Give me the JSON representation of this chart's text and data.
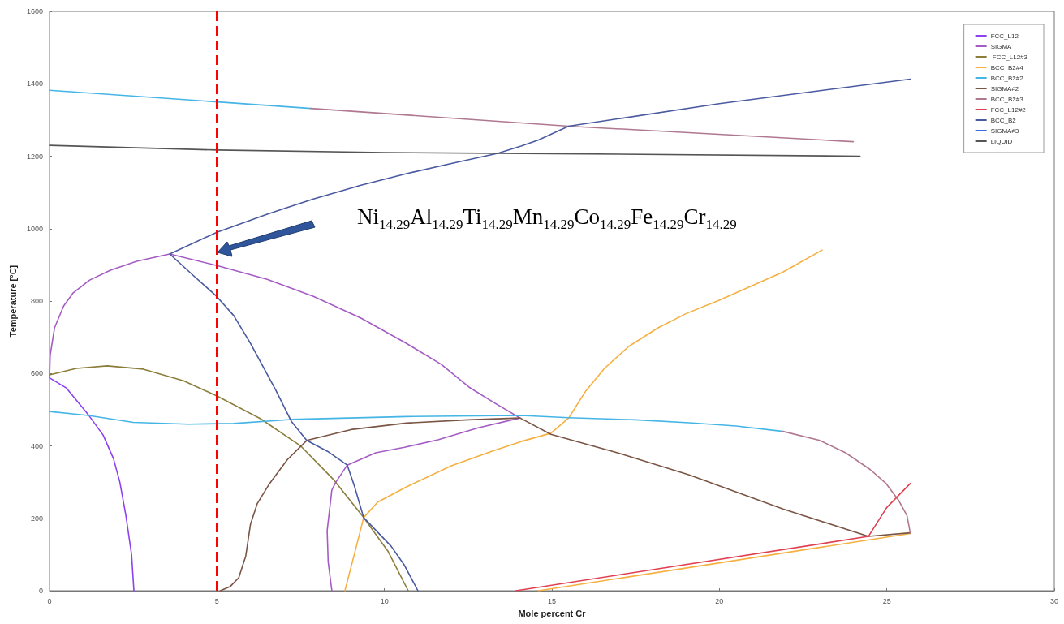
{
  "chart_data": {
    "type": "line",
    "xlabel": "Mole percent Cr",
    "ylabel": "Temperature [°C]",
    "xlim": [
      0,
      30
    ],
    "xticks": [
      0,
      5,
      10,
      15,
      20,
      25,
      30
    ],
    "ylim": [
      0,
      1600
    ],
    "yticks": [
      0,
      200,
      400,
      600,
      800,
      1000,
      1200,
      1400,
      1600
    ],
    "grid": false,
    "legend": "top right",
    "marker": "none",
    "line_style": "solid",
    "annotations": [
      "Ni$_{14.29}$Al$_{14.29}$Ti$_{14.29}$Mn$_{14.29}$Co$_{14.29}$Fe$_{14.29}$Cr$_{14.29}$"
    ],
    "ref_lines": [
      {
        "axis": "x",
        "value": 5,
        "label": null,
        "color": "#ff0000",
        "line_style": "dashed"
      }
    ],
    "series": [
      {
        "name": "FCC_L12",
        "color": "#8c42f0",
        "x": [
          0,
          0.5,
          1.16,
          1.6,
          1.91,
          2.1,
          2.28,
          2.45,
          2.52
        ],
        "values": [
          588,
          560,
          486,
          430,
          365,
          300,
          208,
          100,
          0
        ]
      },
      {
        "name": "SIGMA",
        "color": "#a45cc4",
        "x": [
          0,
          0.02,
          0.15,
          0.42,
          0.7,
          1.2,
          1.82,
          2.6,
          3.59,
          null,
          3.59,
          5,
          6.5,
          7.88,
          9.3,
          10.66,
          11.7,
          12.53,
          13.3,
          14.05,
          null,
          14.05,
          12.8,
          11.6,
          10.6,
          9.74,
          8.89,
          8.55,
          8.43,
          8.29,
          8.32,
          8.43
        ],
        "values": [
          588,
          650,
          726,
          786,
          822,
          858,
          885,
          910,
          930,
          null,
          930,
          898,
          860,
          813,
          753,
          683,
          625,
          562,
          518,
          477,
          null,
          477,
          450,
          417,
          396,
          381,
          347,
          300,
          278,
          166,
          80,
          0
        ]
      },
      {
        "name": " FCC_L12#3",
        "color": "#8b7d3a",
        "x": [
          0,
          0.8,
          1.72,
          2.8,
          4,
          5,
          6.3,
          7.51,
          8.5,
          9.38,
          10.1,
          10.71
        ],
        "values": [
          596,
          614,
          621,
          612,
          580,
          538,
          475,
          399,
          305,
          202,
          110,
          0
        ]
      },
      {
        "name": "BCC_B2#4",
        "color": "#f5b041",
        "x": [
          8.82,
          9.1,
          9.38,
          9.8,
          10.66,
          12,
          13.2,
          14.08,
          14.97,
          null,
          14.97,
          15.5,
          16,
          16.57,
          17.3,
          18.17,
          19,
          20.04,
          21.9,
          23.07,
          null,
          14.6,
          25.7
        ],
        "values": [
          0,
          100,
          202,
          245,
          287,
          345,
          385,
          412,
          435,
          null,
          435,
          477,
          550,
          614,
          675,
          726,
          765,
          804,
          880,
          941,
          null,
          0,
          158
        ]
      },
      {
        "name": "BCC_B2#2",
        "color": "#45b5e5",
        "x": [
          0,
          7.8,
          null,
          0,
          1.16,
          2.5,
          4.14,
          5.5,
          7.22,
          10.66,
          14.08,
          15.5,
          17.5,
          19.1,
          20.5,
          21.9
        ],
        "values": [
          1382,
          1332,
          null,
          495,
          484,
          465,
          460,
          462,
          473,
          481,
          484,
          478,
          472,
          464,
          455,
          440
        ]
      },
      {
        "name": "SIGMA#2",
        "color": "#7a5545",
        "x": [
          5.1,
          5.4,
          5.65,
          5.86,
          6.0,
          6.2,
          6.57,
          7.1,
          7.68,
          9,
          10.66,
          12.5,
          14.05,
          null,
          14.05,
          14.97,
          17,
          19.1,
          21.9,
          24.45,
          25.7
        ],
        "values": [
          0,
          12,
          36,
          96,
          183,
          240,
          296,
          362,
          415,
          445,
          463,
          472,
          477,
          null,
          477,
          432,
          380,
          320,
          226,
          150,
          160
        ]
      },
      {
        "name": "BCC_B2#3",
        "color": "#b07890",
        "x": [
          7.8,
          15.5,
          24.0,
          null,
          21.9,
          23,
          23.77,
          24.5,
          24.98,
          25.35,
          25.6,
          25.7
        ],
        "values": [
          1332,
          1283,
          1240,
          null,
          440,
          415,
          381,
          335,
          296,
          250,
          208,
          160
        ]
      },
      {
        "name": "FCC_L12#2",
        "color": "#e04050",
        "x": [
          13.93,
          24.45,
          null,
          24.45,
          25.0,
          25.7
        ],
        "values": [
          0,
          150,
          null,
          150,
          230,
          296
        ]
      },
      {
        "name": "BCC_B2",
        "color": "#4a5aa0",
        "x": [
          3.59,
          5,
          6.5,
          7.88,
          9.3,
          10.66,
          12,
          13.38,
          14.08,
          14.6,
          15.5,
          20,
          25.7,
          null,
          3.59,
          4.3,
          4.99,
          5.5,
          6.0,
          6.4,
          6.76,
          7.22,
          7.68,
          8.3,
          8.89,
          9.1,
          9.38,
          10.2,
          10.6,
          11.0
        ],
        "values": [
          930,
          990,
          1040,
          1082,
          1120,
          1152,
          1180,
          1208,
          1228,
          1245,
          1283,
          1345,
          1413,
          null,
          930,
          870,
          813,
          760,
          683,
          615,
          553,
          468,
          415,
          385,
          347,
          290,
          202,
          123,
          70,
          0
        ]
      },
      {
        "name": "SIGMA#3",
        "color": "#3a6fe0"
      },
      {
        "name": "LIQUID",
        "color": "#555555",
        "x": [
          0,
          5,
          10,
          15,
          24.2
        ],
        "values": [
          1230,
          1217,
          1210,
          1207,
          1200
        ]
      }
    ]
  }
}
